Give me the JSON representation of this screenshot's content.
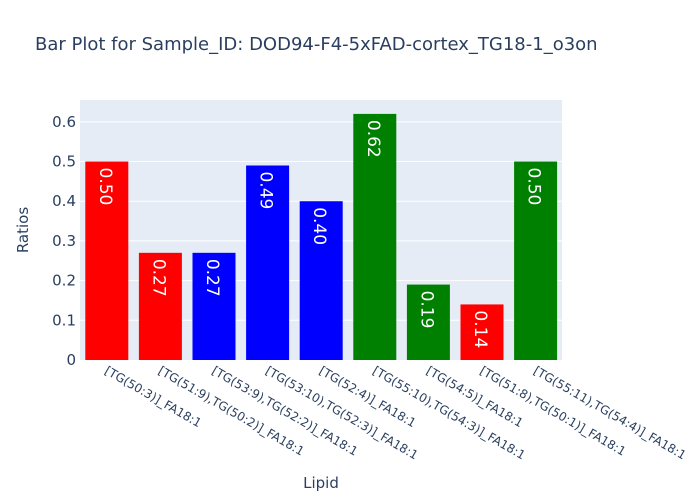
{
  "chart_data": {
    "type": "bar",
    "title": "Bar Plot for Sample_ID: DOD94-F4-5xFAD-cortex_TG18-1_o3on",
    "xlabel": "Lipid",
    "ylabel": "Ratios",
    "ylim": [
      0,
      0.655
    ],
    "yticks": [
      0,
      0.1,
      0.2,
      0.3,
      0.4,
      0.5,
      0.6
    ],
    "ytick_labels": [
      "0",
      "0.1",
      "0.2",
      "0.3",
      "0.4",
      "0.5",
      "0.6"
    ],
    "grid": true,
    "plot_background": "#e5ecf6",
    "categories": [
      "[TG(50:3)]_FA18:1",
      "[TG(51:9),TG(50:2)]_FA18:1",
      "[TG(53:9),TG(52:2)]_FA18:1",
      "[TG(53:10),TG(52:3)]_FA18:1",
      "[TG(52:4)]_FA18:1",
      "[TG(55:10),TG(54:3)]_FA18:1",
      "[TG(54:5)]_FA18:1",
      "[TG(51:8),TG(50:1)]_FA18:1",
      "[TG(55:11),TG(54:4)]_FA18:1"
    ],
    "values": [
      0.5,
      0.27,
      0.27,
      0.49,
      0.4,
      0.62,
      0.19,
      0.14,
      0.5
    ],
    "value_labels": [
      "0.50",
      "0.27",
      "0.27",
      "0.49",
      "0.40",
      "0.62",
      "0.19",
      "0.14",
      "0.50"
    ],
    "colors": [
      "#ff0000",
      "#ff0000",
      "#0000ff",
      "#0000ff",
      "#0000ff",
      "#008000",
      "#008000",
      "#ff0000",
      "#008000"
    ]
  }
}
